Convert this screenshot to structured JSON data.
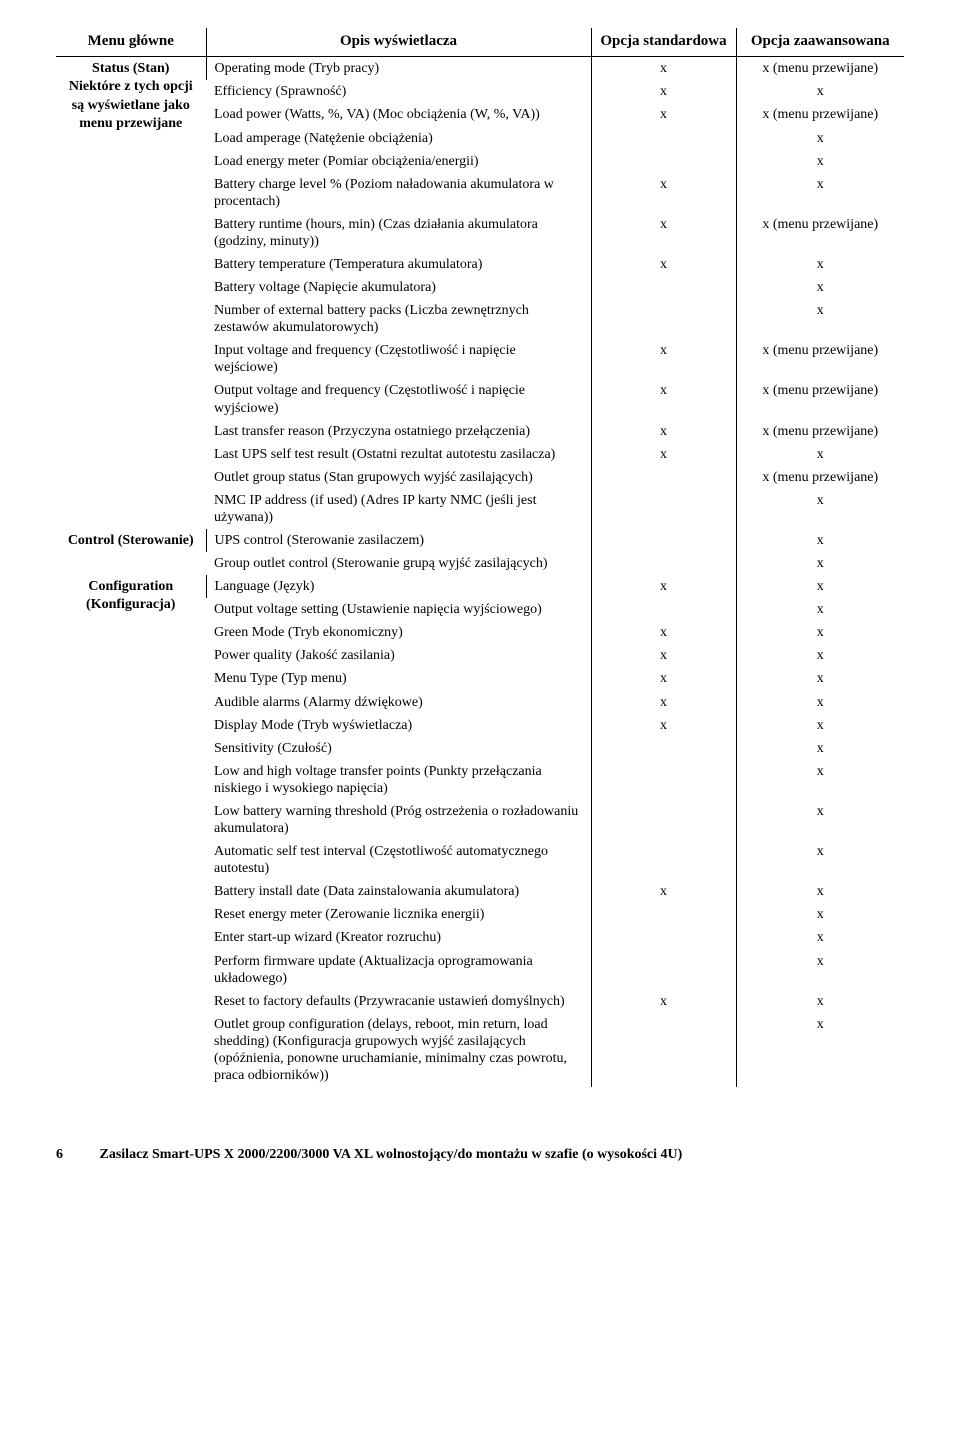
{
  "header": {
    "col_menu": "Menu główne",
    "col_desc": "Opis wyświetlacza",
    "col_std": "Opcja standardowa",
    "col_adv": "Opcja zaawansowana"
  },
  "sections": {
    "status": {
      "title": "Status (Stan)",
      "sub": "Niektóre z tych opcji są wyświetlane jako menu przewijane"
    },
    "control": {
      "title": "Control (Sterowanie)"
    },
    "config": {
      "title": "Configuration (Konfiguracja)"
    }
  },
  "mark": {
    "x": "x",
    "xscroll": "x (menu przewijane)"
  },
  "rows": {
    "r1": {
      "desc": "Operating mode (Tryb pracy)"
    },
    "r2": {
      "desc": "Efficiency (Sprawność)"
    },
    "r3": {
      "desc": "Load power (Watts, %, VA) (Moc obciążenia (W, %, VA))"
    },
    "r4": {
      "desc": "Load amperage (Natężenie obciążenia)"
    },
    "r5": {
      "desc": "Load energy meter (Pomiar obciążenia/energii)"
    },
    "r6": {
      "desc": "Battery charge level % (Poziom naładowania akumulatora w procentach)"
    },
    "r7": {
      "desc": "Battery runtime (hours, min) (Czas działania akumulatora (godziny, minuty))"
    },
    "r8": {
      "desc": "Battery temperature (Temperatura akumulatora)"
    },
    "r9": {
      "desc": "Battery voltage (Napięcie akumulatora)"
    },
    "r10": {
      "desc": "Number of external battery packs (Liczba zewnętrznych zestawów akumulatorowych)"
    },
    "r11": {
      "desc": "Input voltage and frequency (Częstotliwość i napięcie wejściowe)"
    },
    "r12": {
      "desc": "Output voltage and frequency (Częstotliwość i napięcie wyjściowe)"
    },
    "r13": {
      "desc": "Last transfer reason (Przyczyna ostatniego przełączenia)"
    },
    "r14": {
      "desc": "Last UPS self test result (Ostatni rezultat autotestu zasilacza)"
    },
    "r15": {
      "desc": "Outlet group status (Stan grupowych wyjść zasilających)"
    },
    "r16": {
      "desc": "NMC IP address (if used) (Adres IP karty NMC (jeśli jest używana))"
    },
    "r17": {
      "desc": "UPS control (Sterowanie zasilaczem)"
    },
    "r18": {
      "desc": "Group outlet control (Sterowanie grupą wyjść zasilających)"
    },
    "r19": {
      "desc": "Language (Język)"
    },
    "r20": {
      "desc": "Output voltage setting (Ustawienie napięcia wyjściowego)"
    },
    "r21": {
      "desc": "Green Mode (Tryb ekonomiczny)"
    },
    "r22": {
      "desc": "Power quality (Jakość zasilania)"
    },
    "r23": {
      "desc": "Menu Type (Typ menu)"
    },
    "r24": {
      "desc": "Audible alarms (Alarmy dźwiękowe)"
    },
    "r25": {
      "desc": "Display Mode (Tryb wyświetlacza)"
    },
    "r26": {
      "desc": "Sensitivity (Czułość)"
    },
    "r27": {
      "desc": "Low and high voltage transfer points (Punkty przełączania niskiego i wysokiego napięcia)"
    },
    "r28": {
      "desc": "Low battery warning threshold (Próg ostrzeżenia o rozładowaniu akumulatora)"
    },
    "r29": {
      "desc": "Automatic self test interval (Częstotliwość automatycznego autotestu)"
    },
    "r30": {
      "desc": "Battery install date (Data zainstalowania akumulatora)"
    },
    "r31": {
      "desc": "Reset energy meter (Zerowanie licznika energii)"
    },
    "r32": {
      "desc": "Enter start-up wizard (Kreator rozruchu)"
    },
    "r33": {
      "desc": "Perform firmware update (Aktualizacja oprogramowania układowego)"
    },
    "r34": {
      "desc": "Reset to factory defaults (Przywracanie ustawień domyślnych)"
    },
    "r35": {
      "desc": "Outlet group configuration (delays, reboot, min return, load shedding) (Konfiguracja grupowych wyjść zasilających (opóźnienia, ponowne uruchamianie, minimalny czas powrotu, praca odbiorników))"
    }
  },
  "footer": {
    "page": "6",
    "text": "Zasilacz Smart-UPS X 2000/2200/3000 VA XL wolnostojący/do montażu w szafie (o wysokości 4U)"
  }
}
